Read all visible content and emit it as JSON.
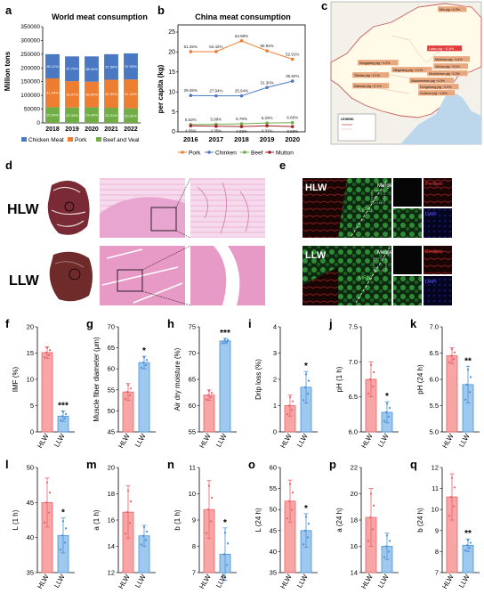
{
  "panels": {
    "a": {
      "letter": "a",
      "title": "World meat consumption",
      "ylabel": "Million tons",
      "yticks": [
        "0",
        "50000",
        "100000",
        "150000",
        "200000",
        "250000",
        "300000",
        "350000"
      ],
      "categories": [
        "2018",
        "2019",
        "2020",
        "2021",
        "2022"
      ],
      "legend": [
        "Chicken Meat",
        "Pork",
        "Beef and Veal"
      ],
      "pct_chicken": [
        "35.12%",
        "37.70%",
        "38.04%",
        "37.69%",
        "37.93%"
      ],
      "pct_pork": [
        "41.94%",
        "39.97%",
        "38.50%",
        "40.30%",
        "41.15%"
      ],
      "pct_beef": [
        "22.94%",
        "22.33%",
        "23.46%",
        "22.01%",
        "20.92%"
      ]
    },
    "b": {
      "letter": "b",
      "title": "China meat consumption",
      "ylabel": "per capita (kg)",
      "yticks": [
        "0",
        "5",
        "10",
        "15",
        "20",
        "25"
      ],
      "categories": [
        "2016",
        "2017",
        "2018",
        "2019",
        "2020"
      ],
      "legend": [
        "Pork",
        "Chinken",
        "Beef",
        "Mutton"
      ],
      "pork_labels": [
        "61.35%",
        "62.42%",
        "64.98%",
        "56.94%",
        "52.91%"
      ],
      "chicken_labels": [
        "28.46%",
        "27.94%",
        "25.64%",
        "31.30%",
        "36.82%"
      ],
      "beef_labels": [
        "5.63%",
        "5.99%",
        "5.79%",
        "6.20%",
        "6.69%"
      ],
      "mutton_labels": [
        "4.56%",
        "4.35%",
        "4.03%",
        "4.31%",
        "3.93%"
      ]
    },
    "c": {
      "letter": "c",
      "callouts": [
        "Min pig ~4.2%",
        "Laiwu pig ~11.8%",
        "Kongqiang pig ~1.2%",
        "Meishan pig ~3.4%",
        "Ningxiang pig ~2.1%",
        "Jinhua pig ~3.1%",
        "Tibetan pig ~2.1%",
        "Wuzhishan pig ~3.3%",
        "Xiaomeishan pig ~4.0%",
        "Rongchang pig ~3.9%",
        "Diannan pig ~2.1%",
        "Guizhou pig ~1.8%"
      ],
      "legend_title": "LEGEND"
    },
    "d": {
      "letter": "d",
      "hlw": "HLW",
      "llw": "LLW"
    },
    "e": {
      "letter": "e",
      "hlw": "HLW",
      "llw": "LLW",
      "merge": "Merge",
      "perilipin": "Perilipin",
      "mf20": "MF20",
      "dapi": "DAPI"
    },
    "bars": [
      {
        "letter": "f",
        "ylabel": "IMF (%)",
        "yticks": [
          "0",
          "5",
          "10",
          "15",
          "20"
        ],
        "sig": "***"
      },
      {
        "letter": "g",
        "ylabel": "Muscle fiber diameter (μm)",
        "yticks": [
          "45",
          "50",
          "55",
          "60",
          "65",
          "70"
        ],
        "sig": "*"
      },
      {
        "letter": "h",
        "ylabel": "Air dry moisture (%)",
        "yticks": [
          "55",
          "60",
          "65",
          "70",
          "75"
        ],
        "sig": "***"
      },
      {
        "letter": "i",
        "ylabel": "Drip loss (%)",
        "yticks": [
          "0",
          "1",
          "2",
          "3",
          "4"
        ],
        "sig": "*"
      },
      {
        "letter": "j",
        "ylabel": "pH (1 h)",
        "yticks": [
          "6.0",
          "6.5",
          "7.0",
          "7.5"
        ],
        "sig": "*"
      },
      {
        "letter": "k",
        "ylabel": "pH (24 h)",
        "yticks": [
          "5.0",
          "5.5",
          "6.0",
          "6.5",
          "7.0"
        ],
        "sig": "**"
      },
      {
        "letter": "l",
        "ylabel": "L (1 h)",
        "yticks": [
          "35",
          "40",
          "45",
          "50"
        ],
        "sig": "*"
      },
      {
        "letter": "m",
        "ylabel": "a (1 h)",
        "yticks": [
          "12",
          "14",
          "16",
          "18",
          "20"
        ],
        "sig": ""
      },
      {
        "letter": "n",
        "ylabel": "b (1 h)",
        "yticks": [
          "7",
          "8",
          "9",
          "10",
          "11"
        ],
        "sig": "*"
      },
      {
        "letter": "o",
        "ylabel": "L (24 h)",
        "yticks": [
          "35",
          "40",
          "45",
          "50",
          "55",
          "60"
        ],
        "sig": "*"
      },
      {
        "letter": "p",
        "ylabel": "a (24 h)",
        "yticks": [
          "14",
          "16",
          "18",
          "20",
          "22"
        ],
        "sig": ""
      },
      {
        "letter": "q",
        "ylabel": "b (24 h)",
        "yticks": [
          "7",
          "8",
          "9",
          "10",
          "11",
          "12"
        ],
        "sig": "**"
      }
    ],
    "group_labels": [
      "HLW",
      "LLW"
    ]
  },
  "chart_data": [
    {
      "type": "bar",
      "title": "World meat consumption",
      "ylabel": "Million tons",
      "ylim": [
        0,
        350000
      ],
      "categories": [
        "2018",
        "2019",
        "2020",
        "2021",
        "2022"
      ],
      "series": [
        {
          "name": "Chicken Meat",
          "values": [
            88000,
            90000,
            92000,
            93000,
            95000
          ]
        },
        {
          "name": "Pork",
          "values": [
            105000,
            96000,
            93000,
            102000,
            105000
          ]
        },
        {
          "name": "Beef and Veal",
          "values": [
            57000,
            56000,
            57000,
            55000,
            53000
          ]
        }
      ]
    },
    {
      "type": "line",
      "title": "China meat consumption",
      "ylabel": "per capita (kg)",
      "ylim": [
        0,
        25
      ],
      "categories": [
        "2016",
        "2017",
        "2018",
        "2019",
        "2020"
      ],
      "series": [
        {
          "name": "Pork",
          "values": [
            20.1,
            20.1,
            22.8,
            20.3,
            18.2
          ]
        },
        {
          "name": "Chinken",
          "values": [
            9.1,
            9.0,
            9.0,
            11.1,
            12.7
          ]
        },
        {
          "name": "Beef",
          "values": [
            1.8,
            1.9,
            2.0,
            2.2,
            2.3
          ]
        },
        {
          "name": "Mutton",
          "values": [
            1.5,
            1.4,
            1.3,
            1.5,
            1.3
          ]
        }
      ]
    },
    {
      "type": "bar",
      "ylabel": "IMF (%)",
      "ylim": [
        0,
        20
      ],
      "categories": [
        "HLW",
        "LLW"
      ],
      "values": [
        15.1,
        3.0
      ],
      "errors": [
        1.1,
        1.0
      ]
    },
    {
      "type": "bar",
      "ylabel": "Muscle fiber diameter (μm)",
      "ylim": [
        45,
        70
      ],
      "categories": [
        "HLW",
        "LLW"
      ],
      "values": [
        54.5,
        61.5
      ],
      "errors": [
        2.0,
        1.5
      ]
    },
    {
      "type": "bar",
      "ylabel": "Air dry moisture (%)",
      "ylim": [
        55,
        75
      ],
      "categories": [
        "HLW",
        "LLW"
      ],
      "values": [
        62.0,
        72.3
      ],
      "errors": [
        1.0,
        0.5
      ]
    },
    {
      "type": "bar",
      "ylabel": "Drip loss (%)",
      "ylim": [
        0,
        4
      ],
      "categories": [
        "HLW",
        "LLW"
      ],
      "values": [
        1.0,
        1.7
      ],
      "errors": [
        0.4,
        0.6
      ]
    },
    {
      "type": "bar",
      "ylabel": "pH (1 h)",
      "ylim": [
        6.0,
        7.5
      ],
      "categories": [
        "HLW",
        "LLW"
      ],
      "values": [
        6.75,
        6.28
      ],
      "errors": [
        0.25,
        0.15
      ]
    },
    {
      "type": "bar",
      "ylabel": "pH (24 h)",
      "ylim": [
        5.0,
        7.0
      ],
      "categories": [
        "HLW",
        "LLW"
      ],
      "values": [
        6.45,
        5.9
      ],
      "errors": [
        0.15,
        0.35
      ]
    },
    {
      "type": "bar",
      "ylabel": "L (1 h)",
      "ylim": [
        35,
        50
      ],
      "categories": [
        "HLW",
        "LLW"
      ],
      "values": [
        45.0,
        40.3
      ],
      "errors": [
        3.5,
        2.5
      ]
    },
    {
      "type": "bar",
      "ylabel": "a (1 h)",
      "ylim": [
        12,
        20
      ],
      "categories": [
        "HLW",
        "LLW"
      ],
      "values": [
        16.6,
        14.8
      ],
      "errors": [
        2.0,
        0.8
      ]
    },
    {
      "type": "bar",
      "ylabel": "b (1 h)",
      "ylim": [
        7,
        11
      ],
      "categories": [
        "HLW",
        "LLW"
      ],
      "values": [
        9.4,
        7.7
      ],
      "errors": [
        1.1,
        1.0
      ]
    },
    {
      "type": "bar",
      "ylabel": "L (24 h)",
      "ylim": [
        35,
        60
      ],
      "categories": [
        "HLW",
        "LLW"
      ],
      "values": [
        52.0,
        45.0
      ],
      "errors": [
        5.0,
        4.0
      ]
    },
    {
      "type": "bar",
      "ylabel": "a (24 h)",
      "ylim": [
        14,
        22
      ],
      "categories": [
        "HLW",
        "LLW"
      ],
      "values": [
        18.2,
        16.0
      ],
      "errors": [
        2.2,
        1.0
      ]
    },
    {
      "type": "bar",
      "ylabel": "b (24 h)",
      "ylim": [
        7,
        12
      ],
      "categories": [
        "HLW",
        "LLW"
      ],
      "values": [
        10.6,
        8.3
      ],
      "errors": [
        1.1,
        0.3
      ]
    }
  ]
}
